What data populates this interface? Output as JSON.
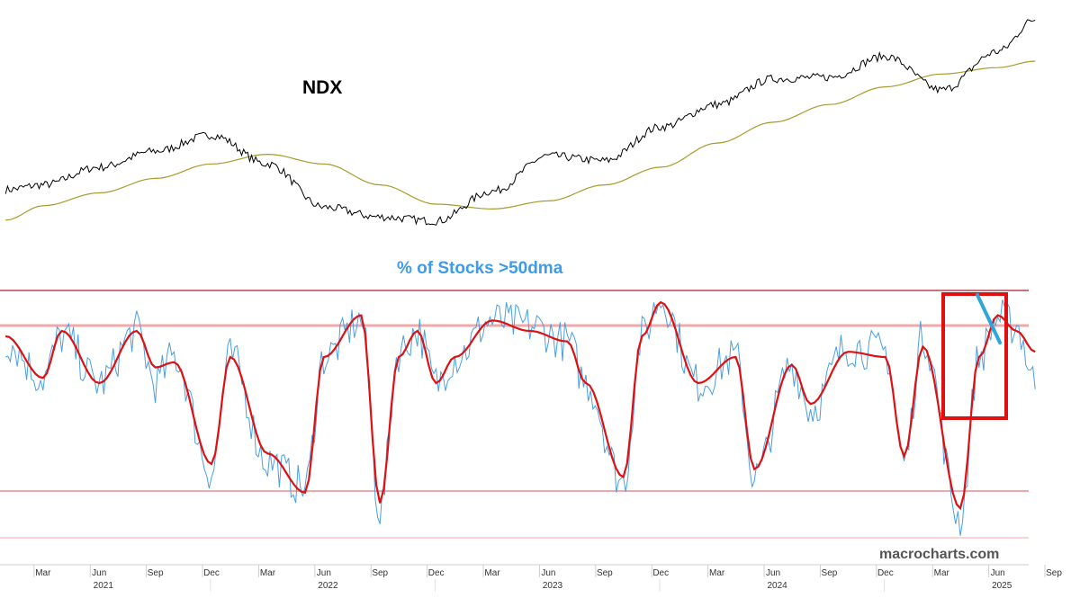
{
  "chart_data": [
    {
      "type": "line",
      "title": "NDX",
      "colors": {
        "price": "#000000",
        "moving_average": "#a89a2a"
      },
      "x": [
        "2021-01",
        "2021-03",
        "2021-06",
        "2021-09",
        "2021-12",
        "2022-03",
        "2022-06",
        "2022-09",
        "2022-12",
        "2023-03",
        "2023-06",
        "2023-09",
        "2023-12",
        "2024-03",
        "2024-06",
        "2024-09",
        "2024-12",
        "2025-03",
        "2025-06",
        "2025-08"
      ],
      "series": [
        {
          "values": [
            12900,
            13200,
            14300,
            15300,
            16300,
            14500,
            11800,
            11200,
            10950,
            12800,
            15000,
            14700,
            16800,
            18200,
            19800,
            19900,
            21200,
            19100,
            21500,
            23500
          ]
        },
        {
          "values": [
            11000,
            11900,
            12700,
            13600,
            14500,
            15100,
            14500,
            13200,
            12000,
            11700,
            12200,
            13200,
            14300,
            15800,
            17100,
            18200,
            19300,
            20100,
            20500,
            20900
          ]
        }
      ]
    },
    {
      "type": "line",
      "title": "% of Stocks >50dma",
      "colors": {
        "raw": "#4a9fe0",
        "smoothed": "#dd1111",
        "bands": "#f2a8a8",
        "box": "#e01010",
        "trend": "#2fa6d8"
      },
      "ylim": [
        0,
        100
      ],
      "x": [
        "2021-01",
        "2021-03",
        "2021-04",
        "2021-06",
        "2021-08",
        "2021-09",
        "2021-10",
        "2021-12",
        "2022-01",
        "2022-03",
        "2022-05",
        "2022-06",
        "2022-08",
        "2022-09",
        "2022-10",
        "2022-11",
        "2022-12",
        "2023-01",
        "2023-03",
        "2023-05",
        "2023-07",
        "2023-08",
        "2023-10",
        "2023-11",
        "2023-12",
        "2024-02",
        "2024-04",
        "2024-05",
        "2024-07",
        "2024-08",
        "2024-10",
        "2024-12",
        "2025-01",
        "2025-02",
        "2025-04",
        "2025-05",
        "2025-06",
        "2025-07",
        "2025-08"
      ],
      "series": [
        {
          "values": [
            76,
            62,
            78,
            60,
            80,
            60,
            70,
            26,
            70,
            30,
            20,
            70,
            84,
            11,
            72,
            80,
            60,
            70,
            84,
            82,
            76,
            60,
            22,
            78,
            92,
            60,
            70,
            24,
            67,
            50,
            74,
            72,
            30,
            78,
            8,
            70,
            85,
            82,
            60
          ]
        },
        {
          "values": [
            78,
            62,
            80,
            60,
            80,
            66,
            68,
            29,
            70,
            33,
            18,
            70,
            86,
            14,
            70,
            80,
            60,
            70,
            84,
            80,
            76,
            60,
            24,
            78,
            91,
            60,
            70,
            27,
            67,
            52,
            72,
            70,
            32,
            74,
            12,
            70,
            86,
            80,
            72
          ]
        }
      ]
    }
  ],
  "axis": {
    "months": [
      {
        "label": "Mar"
      },
      {
        "label": "Jun"
      },
      {
        "label": "Sep"
      },
      {
        "label": "Dec"
      },
      {
        "label": "Mar"
      },
      {
        "label": "Jun"
      },
      {
        "label": "Sep"
      },
      {
        "label": "Dec"
      },
      {
        "label": "Mar"
      },
      {
        "label": "Jun"
      },
      {
        "label": "Sep"
      },
      {
        "label": "Dec"
      },
      {
        "label": "Mar"
      },
      {
        "label": "Jun"
      },
      {
        "label": "Sep"
      },
      {
        "label": "Dec"
      },
      {
        "label": "Mar"
      },
      {
        "label": "Jun"
      },
      {
        "label": "Sep"
      }
    ],
    "years": [
      "2021",
      "2022",
      "2023",
      "2024",
      "2025"
    ]
  },
  "watermark": "macrocharts.com"
}
